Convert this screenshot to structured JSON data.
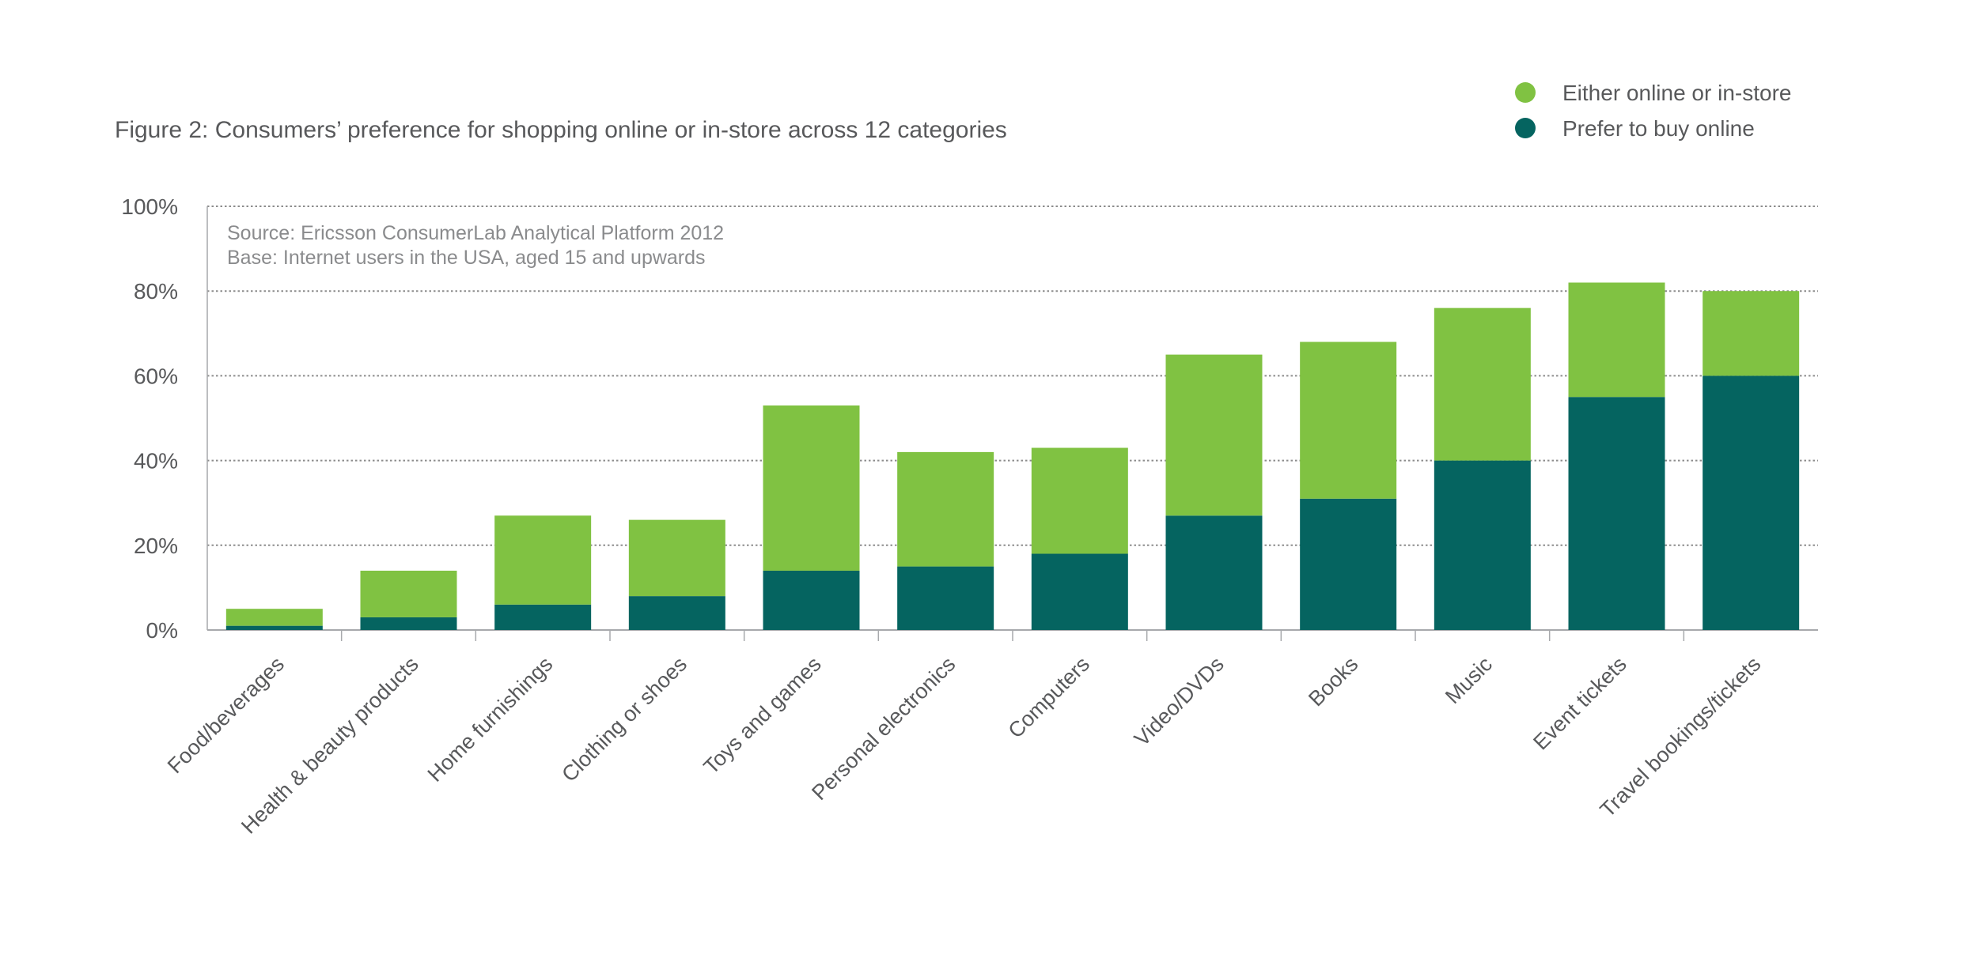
{
  "chart_data": {
    "type": "bar",
    "stacked": true,
    "title": "Figure 2: Consumers’ preference for shopping online or in-store across 12 categories",
    "source_note": "Source: Ericsson ConsumerLab Analytical Platform 2012",
    "base_note": "Base: Internet users in the USA, aged 15 and upwards",
    "xlabel": "",
    "ylabel": "",
    "ylim": [
      0,
      100
    ],
    "yticks": [
      "0%",
      "20%",
      "40%",
      "60%",
      "80%",
      "100%"
    ],
    "ytick_values": [
      0,
      20,
      40,
      60,
      80,
      100
    ],
    "grid": "horizontal dotted",
    "legend_position": "top-right",
    "categories": [
      "Food/beverages",
      "Health & beauty products",
      "Home furnishings",
      "Clothing or shoes",
      "Toys and games",
      "Personal electronics",
      "Computers",
      "Video/DVDs",
      "Books",
      "Music",
      "Event tickets",
      "Travel bookings/tickets"
    ],
    "series": [
      {
        "name": "Prefer to buy online",
        "color": "#056460",
        "values": [
          1,
          3,
          6,
          8,
          14,
          15,
          18,
          27,
          31,
          40,
          55,
          60
        ]
      },
      {
        "name": "Either online or in-store",
        "color": "#80c242",
        "values": [
          4,
          11,
          21,
          18,
          39,
          27,
          25,
          38,
          37,
          36,
          27,
          20
        ]
      }
    ],
    "legend": [
      {
        "label": "Either online or in-store",
        "color": "#80c242"
      },
      {
        "label": "Prefer to buy online",
        "color": "#056460"
      }
    ]
  }
}
